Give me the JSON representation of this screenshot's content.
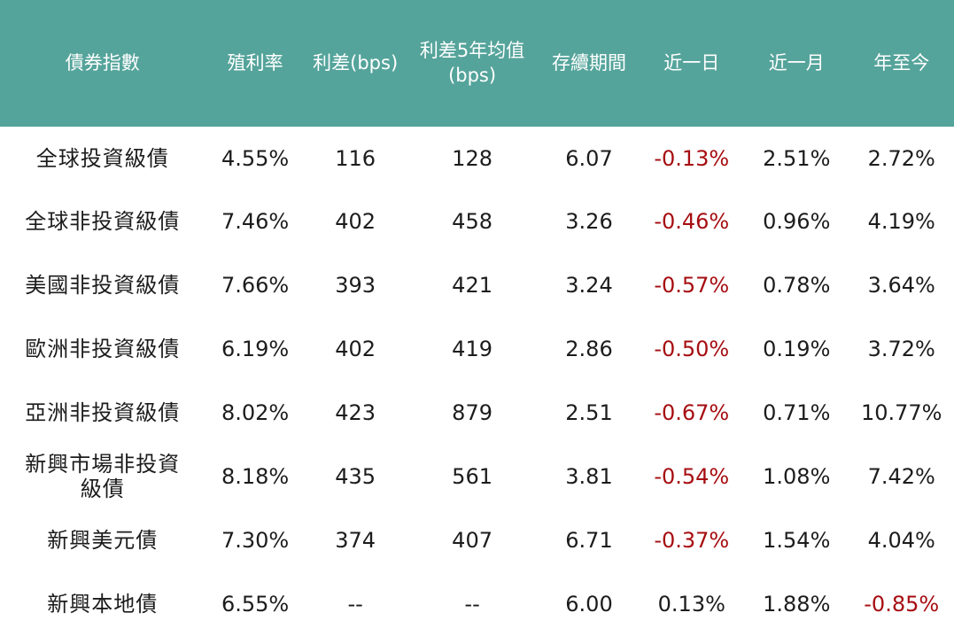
{
  "colors": {
    "header_bg": "#55a49b",
    "header_text": "#ffffff",
    "body_bg": "#ffffff",
    "body_text": "#1c1c1c",
    "negative": "#a60d11"
  },
  "chart_data": {
    "type": "table",
    "columns": [
      "債券指數",
      "殖利率",
      "利差(bps)",
      "利差5年均值\n(bps)",
      "存續期間",
      "近一日",
      "近一月",
      "年至今"
    ],
    "rows": [
      [
        "全球投資級債",
        "4.55%",
        "116",
        "128",
        "6.07",
        "-0.13%",
        "2.51%",
        "2.72%"
      ],
      [
        "全球非投資級債",
        "7.46%",
        "402",
        "458",
        "3.26",
        "-0.46%",
        "0.96%",
        "4.19%"
      ],
      [
        "美國非投資級債",
        "7.66%",
        "393",
        "421",
        "3.24",
        "-0.57%",
        "0.78%",
        "3.64%"
      ],
      [
        "歐洲非投資級債",
        "6.19%",
        "402",
        "419",
        "2.86",
        "-0.50%",
        "0.19%",
        "3.72%"
      ],
      [
        "亞洲非投資級債",
        "8.02%",
        "423",
        "879",
        "2.51",
        "-0.67%",
        "0.71%",
        "10.77%"
      ],
      [
        "新興市場非投資\n級債",
        "8.18%",
        "435",
        "561",
        "3.81",
        "-0.54%",
        "1.08%",
        "7.42%"
      ],
      [
        "新興美元債",
        "7.30%",
        "374",
        "407",
        "6.71",
        "-0.37%",
        "1.54%",
        "4.04%"
      ],
      [
        "新興本地債",
        "6.55%",
        "--",
        "--",
        "6.00",
        "0.13%",
        "1.88%",
        "-0.85%"
      ]
    ],
    "legend": "negative values shown in dark red",
    "grid": false
  }
}
